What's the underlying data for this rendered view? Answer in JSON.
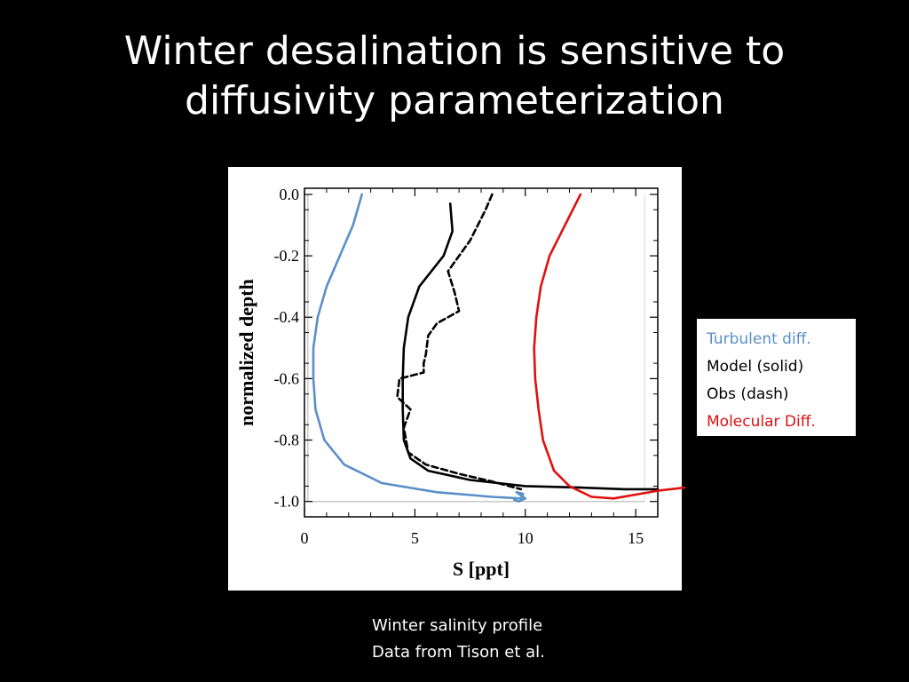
{
  "slide": {
    "title_line1": "Winter desalination is sensitive to",
    "title_line2": "diffusivity parameterization",
    "caption_line1": "Winter salinity profile",
    "caption_line2": "Data from Tison et al."
  },
  "legend": {
    "turbulent": "Turbulent diff.",
    "model": "Model (solid)",
    "obs": "Obs (dash)",
    "molecular": "Molecular Diff."
  },
  "colors": {
    "turbulent": "#5b8fc7",
    "model": "#000000",
    "obs": "#000000",
    "molecular": "#e01010"
  },
  "chart_data": {
    "type": "line",
    "xlabel": "S [ppt]",
    "ylabel": "normalized depth",
    "xlim": [
      0,
      16
    ],
    "ylim": [
      -1.05,
      0.02
    ],
    "xticks": [
      "0",
      "5",
      "10",
      "15"
    ],
    "yticks": [
      "0.0",
      "-0.2",
      "-0.4",
      "-0.6",
      "-0.8",
      "-1.0"
    ],
    "xtick_values": [
      0,
      5,
      10,
      15
    ],
    "ytick_values": [
      0.0,
      -0.2,
      -0.4,
      -0.6,
      -0.8,
      -1.0
    ],
    "series": [
      {
        "key": "turbulent",
        "style": "solid",
        "x": [
          2.6,
          2.2,
          1.6,
          1.0,
          0.6,
          0.4,
          0.4,
          0.5,
          0.9,
          1.8,
          3.5,
          6.0,
          8.5,
          9.8,
          9.9,
          9.6,
          10.0,
          9.7,
          9.5
        ],
        "y": [
          0.0,
          -0.1,
          -0.2,
          -0.3,
          -0.4,
          -0.5,
          -0.6,
          -0.7,
          -0.8,
          -0.88,
          -0.94,
          -0.97,
          -0.985,
          -0.99,
          -0.975,
          -0.97,
          -0.99,
          -1.0,
          -0.995
        ]
      },
      {
        "key": "model",
        "style": "solid",
        "x": [
          6.6,
          6.7,
          6.3,
          5.2,
          4.7,
          4.5,
          4.45,
          4.45,
          4.5,
          4.8,
          5.6,
          7.5,
          10.0,
          12.5,
          14.5,
          15.5,
          16.0
        ],
        "y": [
          -0.03,
          -0.12,
          -0.2,
          -0.3,
          -0.4,
          -0.5,
          -0.6,
          -0.7,
          -0.8,
          -0.86,
          -0.9,
          -0.93,
          -0.95,
          -0.955,
          -0.96,
          -0.96,
          -0.96
        ]
      },
      {
        "key": "obs",
        "style": "dashed",
        "x": [
          8.5,
          8.2,
          7.5,
          6.5,
          6.8,
          7.0,
          6.0,
          5.6,
          5.5,
          5.4,
          5.4,
          4.3,
          4.2,
          4.8,
          4.5,
          4.7,
          5.5,
          7.0,
          8.5,
          9.8
        ],
        "y": [
          0.0,
          -0.05,
          -0.15,
          -0.25,
          -0.32,
          -0.38,
          -0.42,
          -0.46,
          -0.52,
          -0.55,
          -0.58,
          -0.6,
          -0.66,
          -0.7,
          -0.76,
          -0.84,
          -0.88,
          -0.91,
          -0.935,
          -0.96
        ]
      },
      {
        "key": "molecular",
        "style": "solid",
        "x": [
          12.5,
          11.8,
          11.1,
          10.7,
          10.5,
          10.4,
          10.45,
          10.6,
          10.8,
          11.3,
          12.0,
          13.0,
          14.0,
          15.2,
          16.0,
          17.2
        ],
        "y": [
          0.0,
          -0.1,
          -0.2,
          -0.3,
          -0.4,
          -0.5,
          -0.6,
          -0.7,
          -0.8,
          -0.9,
          -0.95,
          -0.985,
          -0.99,
          -0.975,
          -0.965,
          -0.955
        ]
      }
    ]
  }
}
